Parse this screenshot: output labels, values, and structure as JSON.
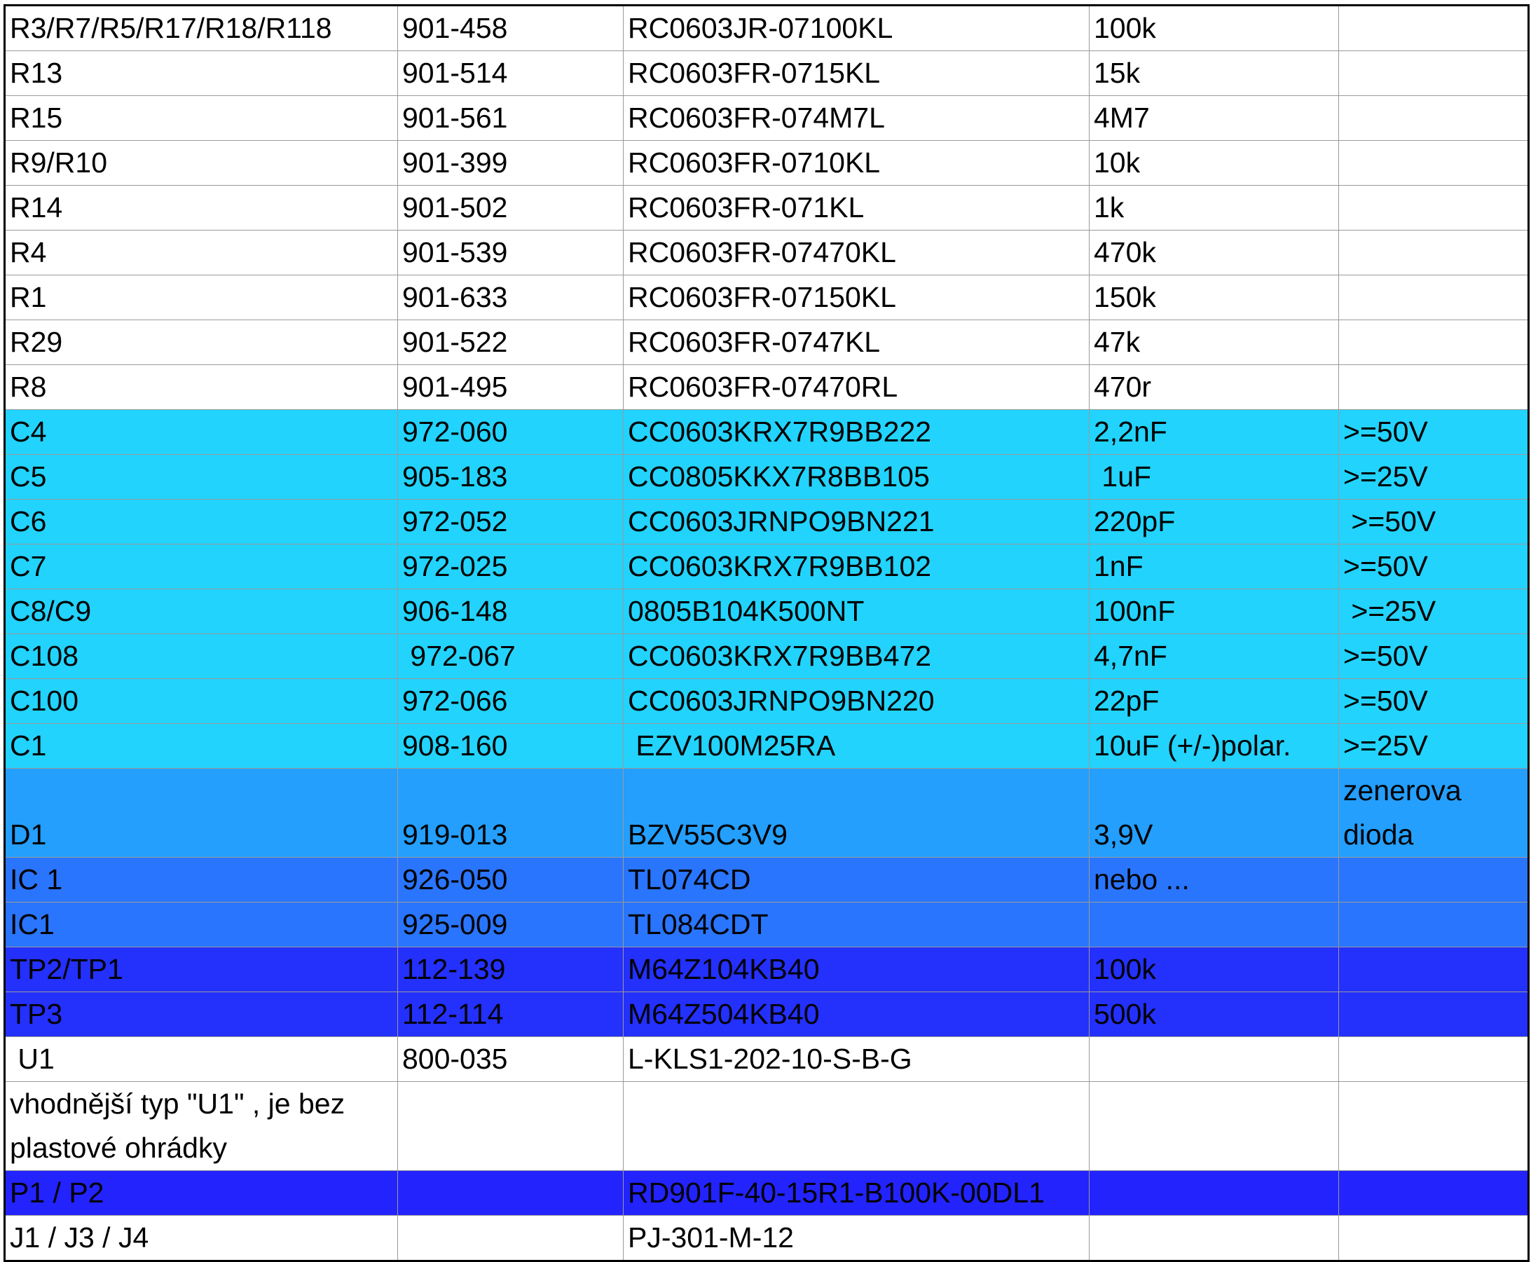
{
  "rows": [
    {
      "cells": [
        "R3/R7/R5/R17/R18/R118",
        "901-458",
        "RC0603JR-07100KL",
        "100k",
        ""
      ],
      "color": "#ffffff"
    },
    {
      "cells": [
        "R13",
        "901-514",
        "RC0603FR-0715KL",
        "15k",
        ""
      ],
      "color": "#ffffff"
    },
    {
      "cells": [
        "R15",
        "901-561",
        "RC0603FR-074M7L",
        "4M7",
        ""
      ],
      "color": "#ffffff"
    },
    {
      "cells": [
        "R9/R10",
        "901-399",
        "RC0603FR-0710KL",
        "10k",
        ""
      ],
      "color": "#ffffff"
    },
    {
      "cells": [
        "R14",
        "901-502",
        "RC0603FR-071KL",
        "1k",
        ""
      ],
      "color": "#ffffff"
    },
    {
      "cells": [
        "R4",
        "901-539",
        "RC0603FR-07470KL",
        "470k",
        ""
      ],
      "color": "#ffffff"
    },
    {
      "cells": [
        "R1",
        "901-633",
        "RC0603FR-07150KL",
        "150k",
        ""
      ],
      "color": "#ffffff"
    },
    {
      "cells": [
        "R29",
        "901-522",
        "RC0603FR-0747KL",
        "47k",
        ""
      ],
      "color": "#ffffff"
    },
    {
      "cells": [
        "R8",
        "901-495",
        "RC0603FR-07470RL",
        "470r",
        ""
      ],
      "color": "#ffffff"
    },
    {
      "cells": [
        "C4",
        "972-060",
        "CC0603KRX7R9BB222",
        "2,2nF",
        ">=50V"
      ],
      "color": "#22d3fd"
    },
    {
      "cells": [
        "C5",
        "905-183",
        "CC0805KKX7R8BB105",
        " 1uF",
        ">=25V"
      ],
      "color": "#22d3fd"
    },
    {
      "cells": [
        "C6",
        "972-052",
        "CC0603JRNPO9BN221",
        "220pF",
        " >=50V"
      ],
      "color": "#22d3fd"
    },
    {
      "cells": [
        "C7",
        "972-025",
        "CC0603KRX7R9BB102",
        "1nF",
        ">=50V"
      ],
      "color": "#22d3fd"
    },
    {
      "cells": [
        "C8/C9",
        "906-148",
        "0805B104K500NT",
        "100nF",
        " >=25V"
      ],
      "color": "#22d3fd"
    },
    {
      "cells": [
        "C108",
        " 972-067",
        "CC0603KRX7R9BB472",
        "4,7nF",
        ">=50V"
      ],
      "color": "#22d3fd"
    },
    {
      "cells": [
        "C100",
        "972-066",
        "CC0603JRNPO9BN220",
        "22pF",
        ">=50V"
      ],
      "color": "#22d3fd"
    },
    {
      "cells": [
        "C1",
        "908-160",
        " EZV100M25RA",
        "10uF (+/-)polar.",
        ">=25V"
      ],
      "color": "#22d3fd"
    },
    {
      "cells": [
        "D1",
        "919-013",
        "BZV55C3V9",
        "3,9V",
        "zenerova dioda"
      ],
      "color": "#249ffe"
    },
    {
      "cells": [
        "IC 1",
        "926-050",
        "TL074CD",
        "nebo ...",
        ""
      ],
      "color": "#2a75fd"
    },
    {
      "cells": [
        "IC1",
        "925-009",
        "TL084CDT",
        "",
        ""
      ],
      "color": "#2a75fd"
    },
    {
      "cells": [
        "TP2/TP1",
        "112-139",
        "M64Z104KB40",
        "100k",
        ""
      ],
      "color": "#2430fc"
    },
    {
      "cells": [
        "TP3",
        "112-114",
        "M64Z504KB40",
        "500k",
        ""
      ],
      "color": "#2430fc"
    },
    {
      "cells": [
        " U1",
        "800-035",
        "L-KLS1-202-10-S-B-G",
        "",
        ""
      ],
      "color": "#ffffff"
    },
    {
      "cells": [
        "vhodnější typ \"U1\" , je bez plastové ohrádky",
        "",
        "",
        "",
        ""
      ],
      "color": "#ffffff"
    },
    {
      "cells": [
        "P1 / P2",
        "",
        "RD901F-40-15R1-B100K-00DL1",
        "",
        ""
      ],
      "color": "#2323fd"
    },
    {
      "cells": [
        "J1 / J3 / J4",
        "",
        "PJ-301-M-12",
        "",
        ""
      ],
      "color": "#ffffff"
    }
  ]
}
